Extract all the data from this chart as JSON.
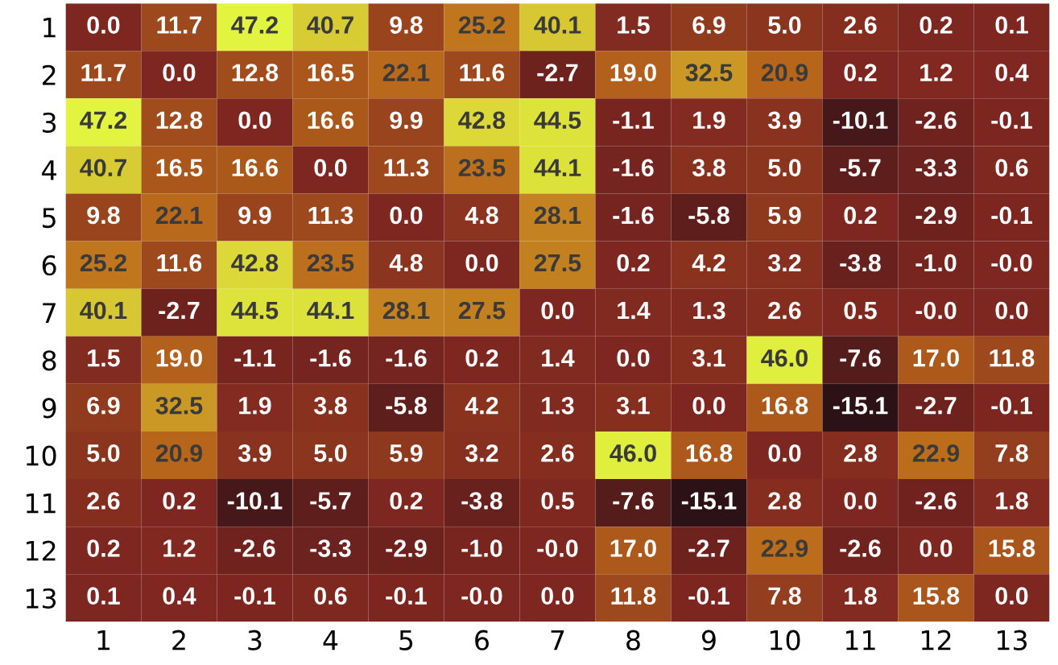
{
  "chart_data": {
    "type": "heatmap",
    "categories": [
      "1",
      "2",
      "3",
      "4",
      "5",
      "6",
      "7",
      "8",
      "9",
      "10",
      "11",
      "12",
      "13"
    ],
    "y_categories": [
      "1",
      "2",
      "3",
      "4",
      "5",
      "6",
      "7",
      "8",
      "9",
      "10",
      "11",
      "12",
      "13"
    ],
    "cells": [
      [
        0.0,
        11.7,
        47.2,
        40.7,
        9.8,
        25.2,
        40.1,
        1.5,
        6.9,
        5.0,
        2.6,
        0.2,
        0.1
      ],
      [
        11.7,
        0.0,
        12.8,
        16.5,
        22.1,
        11.6,
        -2.7,
        19.0,
        32.5,
        20.9,
        0.2,
        1.2,
        0.4
      ],
      [
        47.2,
        12.8,
        0.0,
        16.6,
        9.9,
        42.8,
        44.5,
        -1.1,
        1.9,
        3.9,
        -10.1,
        -2.6,
        -0.1
      ],
      [
        40.7,
        16.5,
        16.6,
        0.0,
        11.3,
        23.5,
        44.1,
        -1.6,
        3.8,
        5.0,
        -5.7,
        -3.3,
        0.6
      ],
      [
        9.8,
        22.1,
        9.9,
        11.3,
        0.0,
        4.8,
        28.1,
        -1.6,
        -5.8,
        5.9,
        0.2,
        -2.9,
        -0.1
      ],
      [
        25.2,
        11.6,
        42.8,
        23.5,
        4.8,
        0.0,
        27.5,
        0.2,
        4.2,
        3.2,
        -3.8,
        -1.0,
        -0.0
      ],
      [
        40.1,
        -2.7,
        44.5,
        44.1,
        28.1,
        27.5,
        0.0,
        1.4,
        1.3,
        2.6,
        0.5,
        -0.0,
        0.0
      ],
      [
        1.5,
        19.0,
        -1.1,
        -1.6,
        -1.6,
        0.2,
        1.4,
        0.0,
        3.1,
        46.0,
        -7.6,
        17.0,
        11.8
      ],
      [
        6.9,
        32.5,
        1.9,
        3.8,
        -5.8,
        4.2,
        1.3,
        3.1,
        0.0,
        16.8,
        -15.1,
        -2.7,
        -0.1
      ],
      [
        5.0,
        20.9,
        3.9,
        5.0,
        5.9,
        3.2,
        2.6,
        46.0,
        16.8,
        0.0,
        2.8,
        22.9,
        7.8
      ],
      [
        2.6,
        0.2,
        -10.1,
        -5.7,
        0.2,
        -3.8,
        0.5,
        -7.6,
        -15.1,
        2.8,
        0.0,
        -2.6,
        1.8
      ],
      [
        0.2,
        1.2,
        -2.6,
        -3.3,
        -2.9,
        -1.0,
        -0.0,
        17.0,
        -2.7,
        22.9,
        -2.6,
        0.0,
        15.8
      ],
      [
        0.1,
        0.4,
        -0.1,
        0.6,
        -0.1,
        -0.0,
        0.0,
        11.8,
        -0.1,
        7.8,
        1.8,
        15.8,
        0.0
      ]
    ],
    "cell_labels": [
      [
        "0.0",
        "11.7",
        "47.2",
        "40.7",
        "9.8",
        "25.2",
        "40.1",
        "1.5",
        "6.9",
        "5.0",
        "2.6",
        "0.2",
        "0.1"
      ],
      [
        "11.7",
        "0.0",
        "12.8",
        "16.5",
        "22.1",
        "11.6",
        "-2.7",
        "19.0",
        "32.5",
        "20.9",
        "0.2",
        "1.2",
        "0.4"
      ],
      [
        "47.2",
        "12.8",
        "0.0",
        "16.6",
        "9.9",
        "42.8",
        "44.5",
        "-1.1",
        "1.9",
        "3.9",
        "-10.1",
        "-2.6",
        "-0.1"
      ],
      [
        "40.7",
        "16.5",
        "16.6",
        "0.0",
        "11.3",
        "23.5",
        "44.1",
        "-1.6",
        "3.8",
        "5.0",
        "-5.7",
        "-3.3",
        "0.6"
      ],
      [
        "9.8",
        "22.1",
        "9.9",
        "11.3",
        "0.0",
        "4.8",
        "28.1",
        "-1.6",
        "-5.8",
        "5.9",
        "0.2",
        "-2.9",
        "-0.1"
      ],
      [
        "25.2",
        "11.6",
        "42.8",
        "23.5",
        "4.8",
        "0.0",
        "27.5",
        "0.2",
        "4.2",
        "3.2",
        "-3.8",
        "-1.0",
        "-0.0"
      ],
      [
        "40.1",
        "-2.7",
        "44.5",
        "44.1",
        "28.1",
        "27.5",
        "0.0",
        "1.4",
        "1.3",
        "2.6",
        "0.5",
        "-0.0",
        "0.0"
      ],
      [
        "1.5",
        "19.0",
        "-1.1",
        "-1.6",
        "-1.6",
        "0.2",
        "1.4",
        "0.0",
        "3.1",
        "46.0",
        "-7.6",
        "17.0",
        "11.8"
      ],
      [
        "6.9",
        "32.5",
        "1.9",
        "3.8",
        "-5.8",
        "4.2",
        "1.3",
        "3.1",
        "0.0",
        "16.8",
        "-15.1",
        "-2.7",
        "-0.1"
      ],
      [
        "5.0",
        "20.9",
        "3.9",
        "5.0",
        "5.9",
        "3.2",
        "2.6",
        "46.0",
        "16.8",
        "0.0",
        "2.8",
        "22.9",
        "7.8"
      ],
      [
        "2.6",
        "0.2",
        "-10.1",
        "-5.7",
        "0.2",
        "-3.8",
        "0.5",
        "-7.6",
        "-15.1",
        "2.8",
        "0.0",
        "-2.6",
        "1.8"
      ],
      [
        "0.2",
        "1.2",
        "-2.6",
        "-3.3",
        "-2.9",
        "-1.0",
        "-0.0",
        "17.0",
        "-2.7",
        "22.9",
        "-2.6",
        "0.0",
        "15.8"
      ],
      [
        "0.1",
        "0.4",
        "-0.1",
        "0.6",
        "-0.1",
        "-0.0",
        "0.0",
        "11.8",
        "-0.1",
        "7.8",
        "1.8",
        "15.8",
        "0.0"
      ]
    ]
  }
}
